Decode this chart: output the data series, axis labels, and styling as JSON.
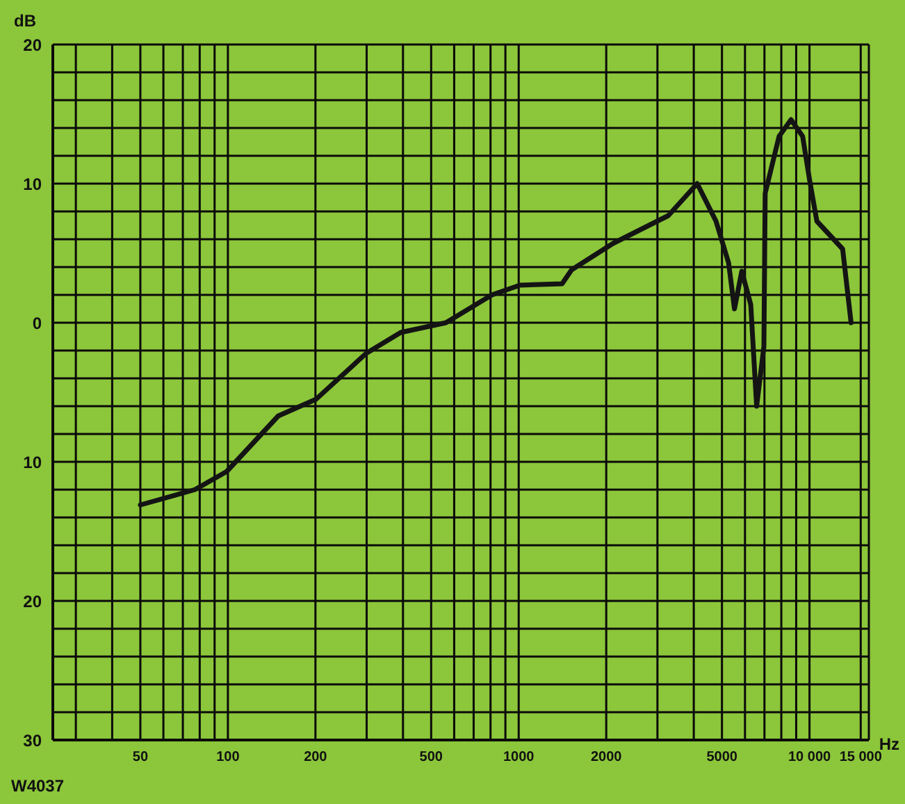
{
  "chart_data": {
    "type": "line",
    "xlabel": "Hz",
    "ylabel": "dB",
    "annotations": [
      "W4037"
    ],
    "log": "x",
    "grid": true,
    "marker": "none",
    "line_style": "solid",
    "xlim": [
      25,
      16000
    ],
    "xticks": [
      {
        "value": 30,
        "label": null
      },
      {
        "value": 40,
        "label": null
      },
      50,
      {
        "value": 60,
        "label": null
      },
      {
        "value": 70,
        "label": null
      },
      {
        "value": 80,
        "label": null
      },
      {
        "value": 90,
        "label": null
      },
      100,
      200,
      {
        "value": 300,
        "label": null
      },
      {
        "value": 400,
        "label": null
      },
      500,
      {
        "value": 600,
        "label": null
      },
      {
        "value": 700,
        "label": null
      },
      {
        "value": 800,
        "label": null
      },
      {
        "value": 900,
        "label": null
      },
      1000,
      2000,
      {
        "value": 3000,
        "label": null
      },
      {
        "value": 4000,
        "label": null
      },
      5000,
      {
        "value": 6000,
        "label": null
      },
      {
        "value": 7000,
        "label": null
      },
      {
        "value": 8000,
        "label": null
      },
      {
        "value": 9000,
        "label": null
      },
      {
        "value": 10000,
        "label": "10 000"
      },
      {
        "value": 15000,
        "label": "15 000"
      }
    ],
    "ylim": [
      -30,
      20
    ],
    "yticks": [
      {
        "value": -30,
        "label": "30"
      },
      {
        "value": -28,
        "label": null
      },
      {
        "value": -26,
        "label": null
      },
      {
        "value": -24,
        "label": null
      },
      {
        "value": -22,
        "label": null
      },
      {
        "value": -20,
        "label": "20"
      },
      {
        "value": -18,
        "label": null
      },
      {
        "value": -16,
        "label": null
      },
      {
        "value": -14,
        "label": null
      },
      {
        "value": -12,
        "label": null
      },
      {
        "value": -10,
        "label": "10"
      },
      {
        "value": -8,
        "label": null
      },
      {
        "value": -6,
        "label": null
      },
      {
        "value": -4,
        "label": null
      },
      {
        "value": -2,
        "label": null
      },
      0,
      {
        "value": 2,
        "label": null
      },
      {
        "value": 4,
        "label": null
      },
      {
        "value": 6,
        "label": null
      },
      {
        "value": 8,
        "label": null
      },
      10,
      {
        "value": 12,
        "label": null
      },
      {
        "value": 14,
        "label": null
      },
      {
        "value": 16,
        "label": null
      },
      {
        "value": 18,
        "label": null
      },
      20
    ],
    "x": [
      50,
      77,
      99,
      149,
      201,
      299,
      393,
      562,
      809,
      1010,
      1410,
      1520,
      2110,
      3270,
      4110,
      4770,
      5270,
      5520,
      5850,
      6280,
      6580,
      6970,
      7040,
      7860,
      8640,
      9470,
      10000,
      10600,
      13000,
      13900
    ],
    "series": [
      {
        "color": "#141414",
        "values": [
          -13.1,
          -12,
          -10.7,
          -6.7,
          -5.5,
          -2.2,
          -0.7,
          0,
          2,
          2.7,
          2.8,
          3.8,
          5.7,
          7.7,
          10,
          7.3,
          4.3,
          1,
          3.7,
          1.3,
          -6,
          -1.7,
          9.3,
          13.4,
          14.6,
          13.4,
          10.3,
          7.3,
          5.3,
          0
        ]
      }
    ]
  }
}
